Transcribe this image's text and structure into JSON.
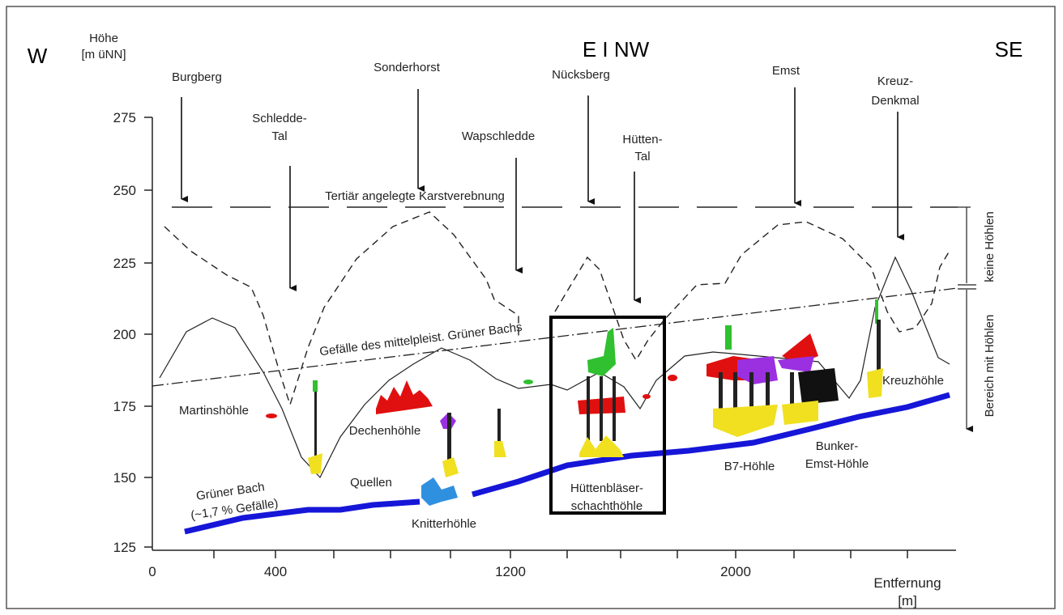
{
  "header": {
    "west": "W",
    "unit_top": "Höhe",
    "unit_bottom": "[m üNN]",
    "middle": "E I NW",
    "east": "SE"
  },
  "y_axis": {
    "ticks": [
      "275",
      "250",
      "225",
      "200",
      "175",
      "150",
      "125"
    ]
  },
  "x_axis": {
    "ticks": [
      "0",
      "400",
      "1200",
      "2000"
    ],
    "title": "Entfernung",
    "unit": "[m]"
  },
  "places": [
    "Burgberg",
    "Sonderhorst",
    "Nücksberg",
    "Emst",
    "Kreuz-",
    "Denkmal",
    "Schledde-",
    "Tal",
    "Wapschledde",
    "Hütten-",
    "Tal"
  ],
  "lines": {
    "plateau": "Tertiär angelegte Karstverebnung",
    "slope": "Gefälle des mittelpleist. Grüner Bachs",
    "river": "Grüner Bach",
    "river_slope": "(~1,7 % Gefälle)"
  },
  "caves": [
    "Martinshöhle",
    "Dechenhöhle",
    "Quellen",
    "Knitterhöhle",
    "Hüttenbläser-",
    "schachthöhle",
    "B7-Höhle",
    "Bunker-",
    "Emst-Höhle",
    "Kreuzhöhle"
  ],
  "zones": {
    "upper": "keine Höhlen",
    "lower": "Bereich mit Höhlen"
  }
}
